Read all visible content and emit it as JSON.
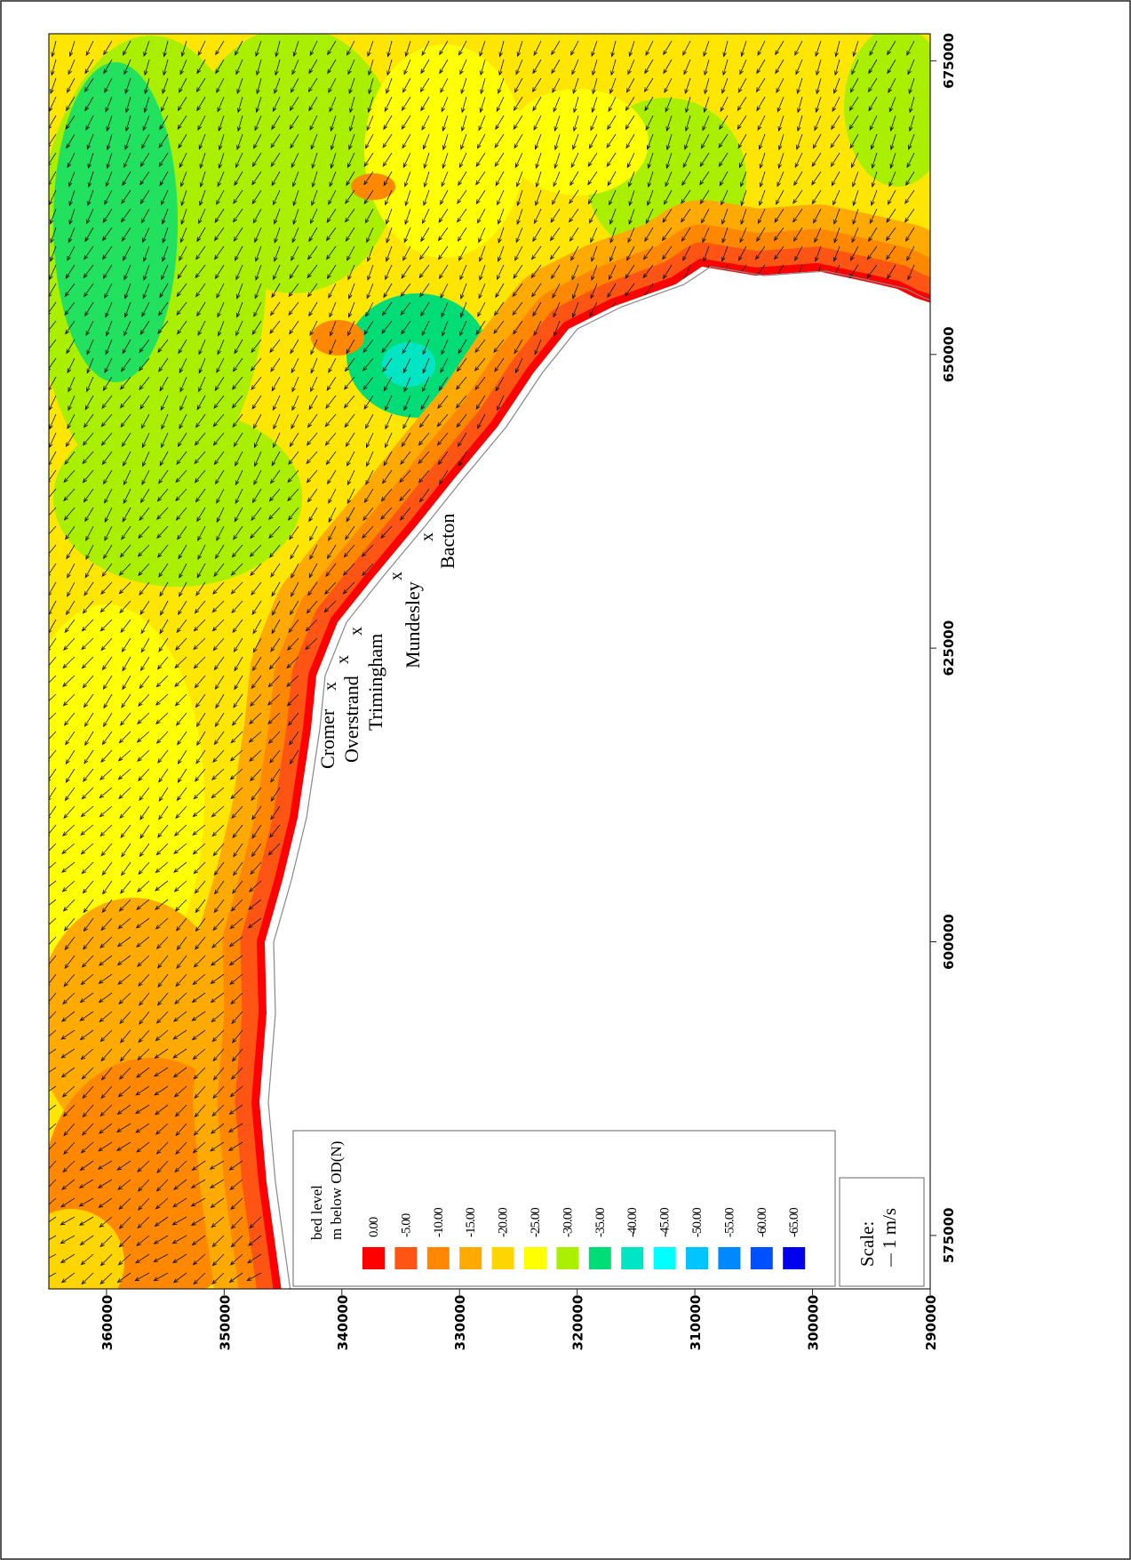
{
  "axes": {
    "easting": {
      "lim": [
        570450,
        677300
      ],
      "ticks": [
        575000,
        600000,
        625000,
        650000,
        675000
      ]
    },
    "northing": {
      "lim": [
        290000,
        364900
      ],
      "ticks": [
        290000,
        300000,
        310000,
        320000,
        330000,
        340000,
        350000,
        360000
      ]
    }
  },
  "places": [
    {
      "name": "Cromer",
      "marker": "x"
    },
    {
      "name": "Overstrand",
      "marker": "x"
    },
    {
      "name": "Trimingham",
      "marker": "x"
    },
    {
      "name": "Mundesley",
      "marker": "x"
    },
    {
      "name": "Bacton",
      "marker": "x"
    }
  ],
  "legend": {
    "title": "bed level",
    "subtitle": "m below OD(N)",
    "levels": [
      {
        "label": "0.00",
        "color": "#ff0000"
      },
      {
        "label": "-5.00",
        "color": "#ff5514"
      },
      {
        "label": "-10.00",
        "color": "#ff8800"
      },
      {
        "label": "-15.00",
        "color": "#ffaa00"
      },
      {
        "label": "-20.00",
        "color": "#ffd500"
      },
      {
        "label": "-25.00",
        "color": "#ffff00"
      },
      {
        "label": "-30.00",
        "color": "#aaee00"
      },
      {
        "label": "-35.00",
        "color": "#00dd77"
      },
      {
        "label": "-40.00",
        "color": "#00e5c4"
      },
      {
        "label": "-45.00",
        "color": "#00ffff"
      },
      {
        "label": "-50.00",
        "color": "#00c4ff"
      },
      {
        "label": "-55.00",
        "color": "#0088ff"
      },
      {
        "label": "-60.00",
        "color": "#0050ff"
      },
      {
        "label": "-65.00",
        "color": "#0000ee"
      }
    ]
  },
  "scale": {
    "title": "Scale:",
    "label": "1 m/s"
  }
}
